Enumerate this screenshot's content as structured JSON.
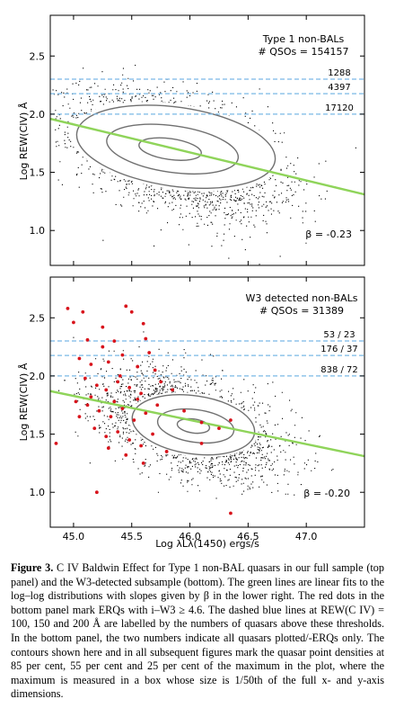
{
  "chart_data": [
    {
      "type": "scatter",
      "panel": "top",
      "title": "",
      "annotation_lines": [
        "Type 1 non-BALs",
        "# QSOs = 154157"
      ],
      "beta_label": "β = -0.23",
      "ylabel": "Log REW(CIV) Å",
      "xlabel": "",
      "xlim": [
        44.8,
        47.5
      ],
      "ylim": [
        0.7,
        2.85
      ],
      "yticks": [
        "1.0",
        "1.5",
        "2.0",
        "2.5"
      ],
      "ytick_values": [
        1.0,
        1.5,
        2.0,
        2.5
      ],
      "xticks": [],
      "fit_line": {
        "x": [
          44.8,
          47.5
        ],
        "y": [
          1.96,
          1.31
        ]
      },
      "thresholds": [
        {
          "y": 2.301,
          "label": "1288"
        },
        {
          "y": 2.176,
          "label": "4397"
        },
        {
          "y": 2.0,
          "label": "17120"
        }
      ],
      "density_center": {
        "x": 45.9,
        "y": 1.66
      },
      "contours": [
        {
          "level": "85 per cent",
          "cx": 45.83,
          "cy": 1.7,
          "rx": 0.27,
          "ry": 0.09
        },
        {
          "level": "55 per cent",
          "cx": 45.85,
          "cy": 1.7,
          "rx": 0.57,
          "ry": 0.2
        },
        {
          "level": "25 per cent",
          "cx": 45.88,
          "cy": 1.72,
          "rx": 0.86,
          "ry": 0.34
        }
      ],
      "red_points": []
    },
    {
      "type": "scatter",
      "panel": "bottom",
      "title": "",
      "annotation_lines": [
        "W3 detected non-BALs",
        "# QSOs = 31389"
      ],
      "beta_label": "β = -0.20",
      "ylabel": "Log REW(CIV) Å",
      "xlabel": "Log λLλ(1450) ergs/s",
      "xlim": [
        44.8,
        47.5
      ],
      "ylim": [
        0.7,
        2.85
      ],
      "yticks": [
        "1.0",
        "1.5",
        "2.0",
        "2.5"
      ],
      "ytick_values": [
        1.0,
        1.5,
        2.0,
        2.5
      ],
      "xticks": [
        "45.0",
        "45.5",
        "46.0",
        "46.5",
        "47.0"
      ],
      "xtick_values": [
        45.0,
        45.5,
        46.0,
        46.5,
        47.0
      ],
      "fit_line": {
        "x": [
          44.8,
          47.5
        ],
        "y": [
          1.87,
          1.31
        ]
      },
      "thresholds": [
        {
          "y": 2.301,
          "label": "53 / 23"
        },
        {
          "y": 2.176,
          "label": "176 / 37"
        },
        {
          "y": 2.0,
          "label": "838 / 72"
        }
      ],
      "density_center": {
        "x": 46.0,
        "y": 1.58
      },
      "contours": [
        {
          "level": "85 per cent",
          "cx": 46.03,
          "cy": 1.57,
          "rx": 0.14,
          "ry": 0.06
        },
        {
          "level": "55 per cent",
          "cx": 46.05,
          "cy": 1.57,
          "rx": 0.33,
          "ry": 0.14
        },
        {
          "level": "25 per cent",
          "cx": 46.03,
          "cy": 1.58,
          "rx": 0.53,
          "ry": 0.25
        }
      ],
      "red_points": [
        {
          "x": 44.95,
          "y": 2.58
        },
        {
          "x": 45.0,
          "y": 2.46
        },
        {
          "x": 45.08,
          "y": 2.55
        },
        {
          "x": 45.45,
          "y": 2.6
        },
        {
          "x": 45.5,
          "y": 2.55
        },
        {
          "x": 45.6,
          "y": 2.45
        },
        {
          "x": 45.12,
          "y": 2.31
        },
        {
          "x": 45.25,
          "y": 2.25
        },
        {
          "x": 45.35,
          "y": 2.3
        },
        {
          "x": 45.05,
          "y": 2.15
        },
        {
          "x": 45.15,
          "y": 2.1
        },
        {
          "x": 45.3,
          "y": 2.12
        },
        {
          "x": 45.42,
          "y": 2.18
        },
        {
          "x": 45.55,
          "y": 2.08
        },
        {
          "x": 45.65,
          "y": 2.2
        },
        {
          "x": 45.7,
          "y": 2.05
        },
        {
          "x": 45.1,
          "y": 1.98
        },
        {
          "x": 45.2,
          "y": 1.92
        },
        {
          "x": 45.28,
          "y": 1.88
        },
        {
          "x": 45.38,
          "y": 1.95
        },
        {
          "x": 45.48,
          "y": 1.9
        },
        {
          "x": 45.58,
          "y": 1.85
        },
        {
          "x": 45.75,
          "y": 1.95
        },
        {
          "x": 45.85,
          "y": 1.88
        },
        {
          "x": 45.02,
          "y": 1.78
        },
        {
          "x": 45.12,
          "y": 1.75
        },
        {
          "x": 45.22,
          "y": 1.7
        },
        {
          "x": 45.32,
          "y": 1.65
        },
        {
          "x": 45.42,
          "y": 1.72
        },
        {
          "x": 45.52,
          "y": 1.62
        },
        {
          "x": 45.62,
          "y": 1.68
        },
        {
          "x": 45.72,
          "y": 1.75
        },
        {
          "x": 45.95,
          "y": 1.7
        },
        {
          "x": 45.18,
          "y": 1.55
        },
        {
          "x": 45.28,
          "y": 1.48
        },
        {
          "x": 45.38,
          "y": 1.52
        },
        {
          "x": 45.48,
          "y": 1.45
        },
        {
          "x": 45.58,
          "y": 1.4
        },
        {
          "x": 45.68,
          "y": 1.5
        },
        {
          "x": 46.1,
          "y": 1.6
        },
        {
          "x": 46.25,
          "y": 1.55
        },
        {
          "x": 46.35,
          "y": 1.62
        },
        {
          "x": 45.3,
          "y": 1.38
        },
        {
          "x": 45.45,
          "y": 1.32
        },
        {
          "x": 45.6,
          "y": 1.25
        },
        {
          "x": 45.8,
          "y": 1.35
        },
        {
          "x": 46.1,
          "y": 1.42
        },
        {
          "x": 44.85,
          "y": 1.42
        },
        {
          "x": 45.2,
          "y": 1.0
        },
        {
          "x": 46.35,
          "y": 0.82
        },
        {
          "x": 45.05,
          "y": 1.65
        },
        {
          "x": 45.4,
          "y": 2.0
        },
        {
          "x": 45.62,
          "y": 2.32
        },
        {
          "x": 45.25,
          "y": 2.42
        },
        {
          "x": 45.15,
          "y": 1.82
        },
        {
          "x": 45.35,
          "y": 1.78
        },
        {
          "x": 45.55,
          "y": 1.8
        }
      ]
    }
  ],
  "caption": {
    "lead": "Figure 3.",
    "text": " C IV Baldwin Effect for Type 1 non-BAL quasars in our full sample (top panel) and the W3-detected subsample (bottom). The green lines are linear fits to the log–log distributions with slopes given by β in the lower right. The red dots in the bottom panel mark ERQs with i–W3 ≥ 4.6. The dashed blue lines at REW(C IV) = 100, 150 and 200 Å are labelled by the numbers of quasars above these thresholds. In the bottom panel, the two numbers indicate all quasars plotted/-ERQs only. The contours shown here and in all subsequent figures mark the quasar point densities at 85 per cent, 55 per cent and 25 per cent of the maximum in the plot, where the maximum is measured in a box whose size is 1/50th of the full x- and y-axis dimensions."
  },
  "colors": {
    "fit_line": "#8fd45a",
    "threshold": "#7ab8e6",
    "red_point": "#d8141c",
    "contour": "#707070",
    "points": "#000000"
  }
}
